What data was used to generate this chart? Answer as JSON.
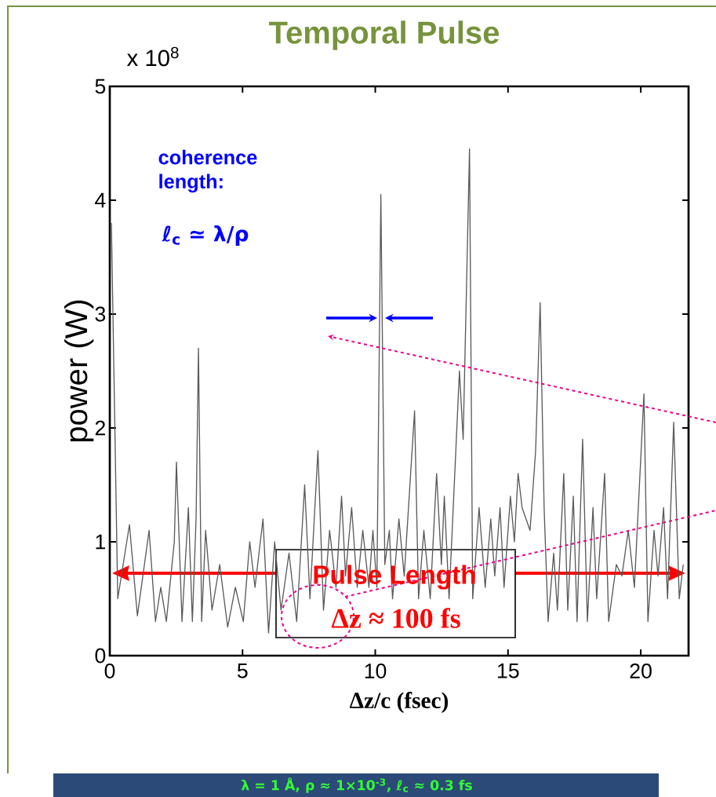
{
  "chart_data": {
    "type": "line",
    "title": "Temporal Pulse",
    "xlabel": "Δz/c (fsec)",
    "ylabel": "power (W)",
    "annotations": [
      "x 10$^{8}$",
      "coherence length:",
      "ℓ$_{c}$ ≃ λ/ρ",
      "Pulse Length",
      "Δz ≈ 100 fs",
      "λ = 1 Å, ρ ≈ 1×10$^{-3}$, ℓ$_{c}$ ≈ 0.3 fs"
    ],
    "x": [
      0.06,
      0.3,
      0.74,
      1.04,
      1.48,
      1.72,
      1.92,
      2.13,
      2.43,
      2.51,
      2.72,
      2.96,
      3.11,
      3.25,
      3.34,
      3.46,
      3.61,
      3.85,
      4.14,
      4.44,
      4.73,
      5.03,
      5.27,
      5.47,
      5.77,
      5.98,
      6.21,
      6.45,
      6.75,
      7.04,
      7.34,
      7.54,
      7.84,
      8.05,
      8.28,
      8.52,
      8.73,
      8.88,
      9.11,
      9.32,
      9.53,
      9.76,
      9.91,
      10.06,
      10.21,
      10.36,
      10.53,
      10.65,
      10.89,
      11.09,
      11.48,
      11.63,
      11.83,
      12.07,
      12.31,
      12.49,
      12.6,
      12.78,
      13.17,
      13.31,
      13.55,
      13.67,
      13.91,
      14.14,
      14.35,
      14.5,
      14.7,
      14.85,
      15.09,
      15.24,
      15.38,
      15.53,
      15.83,
      16.04,
      16.21,
      16.36,
      16.51,
      16.72,
      16.86,
      17.1,
      17.25,
      17.46,
      17.6,
      17.81,
      17.99,
      18.2,
      18.34,
      18.64,
      18.79,
      19.08,
      19.29,
      19.53,
      19.76,
      20.12,
      20.27,
      20.5,
      20.65,
      20.86,
      21.01,
      21.24,
      21.45,
      21.6
    ],
    "values": [
      3.8,
      0.5,
      1.15,
      0.35,
      1.1,
      0.3,
      0.6,
      0.3,
      1.0,
      1.7,
      0.3,
      1.3,
      0.3,
      1.2,
      2.7,
      0.3,
      1.1,
      0.4,
      0.8,
      0.25,
      0.6,
      0.3,
      1.0,
      0.6,
      1.2,
      0.2,
      1.0,
      0.4,
      0.9,
      0.3,
      1.5,
      0.5,
      1.8,
      0.4,
      1.1,
      0.6,
      1.4,
      0.7,
      1.3,
      0.6,
      1.1,
      0.6,
      1.1,
      0.6,
      4.05,
      0.8,
      1.1,
      0.5,
      1.2,
      0.7,
      2.15,
      0.5,
      1.1,
      0.5,
      1.6,
      0.8,
      1.4,
      0.5,
      2.5,
      1.9,
      4.45,
      0.5,
      1.3,
      0.6,
      1.2,
      0.7,
      1.3,
      0.6,
      1.4,
      1.0,
      1.6,
      1.3,
      1.1,
      1.8,
      3.1,
      1.3,
      0.3,
      0.9,
      0.4,
      1.6,
      0.4,
      1.4,
      0.3,
      1.9,
      0.3,
      1.3,
      0.5,
      1.6,
      0.3,
      0.8,
      0.7,
      1.1,
      0.6,
      2.3,
      0.3,
      1.1,
      0.7,
      1.3,
      0.5,
      2.05,
      0.5,
      0.8
    ],
    "color": "#5a5a5a",
    "xlim": [
      0,
      21.8
    ],
    "ylim": [
      0,
      5
    ],
    "xticks": [
      0,
      5,
      10,
      15,
      20
    ],
    "yticks": [
      0,
      1,
      2,
      3,
      4,
      5
    ]
  }
}
